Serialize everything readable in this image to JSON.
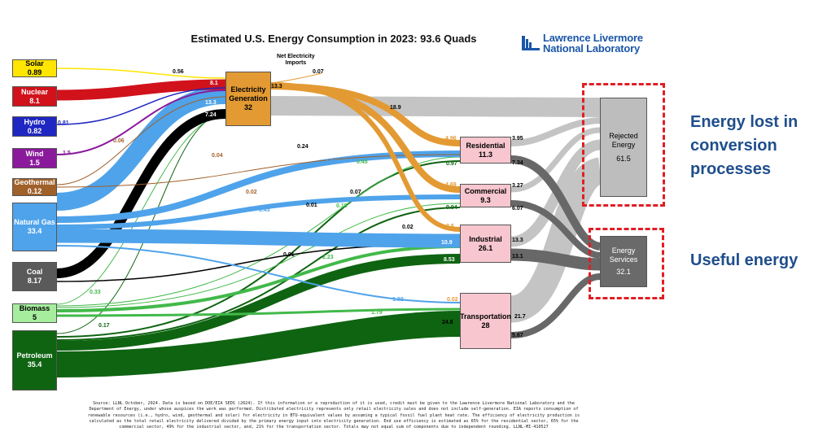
{
  "title": "Estimated U.S. Energy Consumption in 2023: 93.6 Quads",
  "org": {
    "line1": "Lawrence Livermore",
    "line2": "National Laboratory"
  },
  "imports": {
    "label_line1": "Net Electricity",
    "label_line2": "Imports",
    "value": "0.07"
  },
  "sources": [
    {
      "name": "Solar",
      "value": "0.89",
      "color": "#ffe600",
      "text": "#000000"
    },
    {
      "name": "Nuclear",
      "value": "8.1",
      "color": "#d1121b",
      "text": "#ffffff"
    },
    {
      "name": "Hydro",
      "value": "0.82",
      "color": "#1f27c2",
      "text": "#ffffff"
    },
    {
      "name": "Wind",
      "value": "1.5",
      "color": "#8a1a9b",
      "text": "#ffffff"
    },
    {
      "name": "Geothermal",
      "value": "0.12",
      "color": "#a0602a",
      "text": "#ffffff"
    },
    {
      "name": "Natural Gas",
      "value": "33.4",
      "color": "#4fa3ea",
      "text": "#ffffff"
    },
    {
      "name": "Coal",
      "value": "8.17",
      "color": "#5a5a5a",
      "text": "#ffffff"
    },
    {
      "name": "Biomass",
      "value": "5",
      "color": "#a6ee9e",
      "text": "#000000"
    },
    {
      "name": "Petroleum",
      "value": "35.4",
      "color": "#0f6412",
      "text": "#ffffff"
    }
  ],
  "sectors": [
    {
      "name": "Electricity Generation",
      "value": "32",
      "color": "#e39a33"
    },
    {
      "name": "Residential",
      "value": "11.3",
      "color": "#f7c6ce"
    },
    {
      "name": "Commercial",
      "value": "9.3",
      "color": "#f7c6ce"
    },
    {
      "name": "Industrial",
      "value": "26.1",
      "color": "#f7c6ce"
    },
    {
      "name": "Transportation",
      "value": "28",
      "color": "#f7c6ce"
    }
  ],
  "outputs": [
    {
      "name": "Rejected Energy",
      "value": "61.5",
      "color": "#bdbdbd"
    },
    {
      "name": "Energy Services",
      "value": "32.1",
      "color": "#6a6a6a"
    }
  ],
  "flow_labels": [
    "0.56",
    "8.1",
    "13.3",
    "7.24",
    "0.81",
    "1.5",
    "0.06",
    "0.04",
    "13.3",
    "0.07",
    "18.9",
    "4.96",
    "0.24",
    "3.95",
    "4.64",
    "0.45",
    "0.97",
    "7.34",
    "4.69",
    "3.27",
    "0.02",
    "0.07",
    "0.94",
    "3.43",
    "0.01",
    "0.19",
    "6.07",
    "0.02",
    "3.5",
    "13.3",
    "10.9",
    "0.91",
    "2.23",
    "8.53",
    "13.1",
    "0.33",
    "1.32",
    "0.02",
    "1.79",
    "21.7",
    "0.17",
    "24.8",
    "5.87"
  ],
  "callouts": {
    "lost": [
      "Energy lost in",
      "conversion",
      "processes"
    ],
    "useful": "Useful energy"
  },
  "footnote": [
    "Source: LLNL October, 2024. Data is based on DOE/EIA SEDS (2024). If this information or a reproduction of it is used, credit must be given to the Lawrence Livermore National Laboratory and the",
    "Department of Energy, under whose auspices the work was performed. Distributed electricity represents only retail electricity sales and does not include self-generation. EIA reports consumption of",
    "renewable resources (i.e., hydro, wind, geothermal and solar) for electricity in BTU-equivalent values by assuming a typical fossil fuel plant heat rate. The efficiency of electricity production is",
    "calculated as the total retail electricity delivered divided by the primary energy input into electricity generation. End use efficiency is estimated as 65% for the residential sector, 65% for the",
    "commercial sector, 49% for the industrial sector, and, 21% for the transportation sector. Totals may not equal sum of components due to independent rounding. LLNL-MI-410527"
  ]
}
